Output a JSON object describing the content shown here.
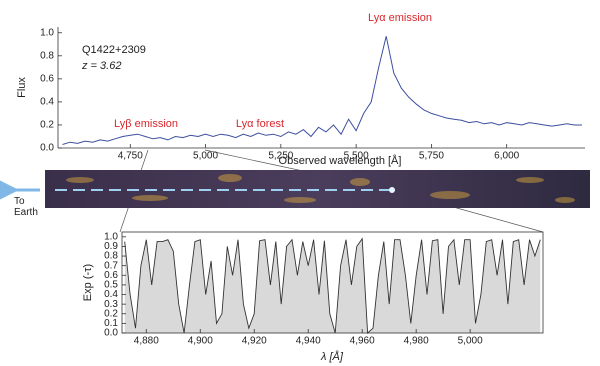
{
  "chart_data": [
    {
      "type": "line",
      "color": "#3b4f9e",
      "ylabel": "Flux",
      "xlabel": "Observed wavelength [Å]",
      "annotations": [
        "Q1422+2309",
        "z = 3.62",
        "Lyα emission",
        "Lyβ emission",
        "Lyα forest"
      ],
      "x": [
        4525,
        4550,
        4575,
        4600,
        4625,
        4650,
        4675,
        4700,
        4725,
        4750,
        4775,
        4800,
        4825,
        4850,
        4875,
        4900,
        4925,
        4950,
        4975,
        5000,
        5025,
        5050,
        5075,
        5100,
        5125,
        5150,
        5175,
        5200,
        5225,
        5250,
        5275,
        5300,
        5325,
        5350,
        5375,
        5400,
        5425,
        5450,
        5475,
        5500,
        5525,
        5550,
        5575,
        5600,
        5625,
        5650,
        5675,
        5700,
        5725,
        5750,
        5775,
        5800,
        5825,
        5850,
        5875,
        5900,
        5925,
        5950,
        5975,
        6000,
        6025,
        6050,
        6075,
        6100,
        6125,
        6150,
        6175,
        6200,
        6225,
        6250
      ],
      "values": [
        0.03,
        0.05,
        0.04,
        0.06,
        0.05,
        0.07,
        0.06,
        0.08,
        0.1,
        0.11,
        0.12,
        0.1,
        0.08,
        0.09,
        0.07,
        0.1,
        0.09,
        0.11,
        0.1,
        0.12,
        0.1,
        0.12,
        0.11,
        0.09,
        0.12,
        0.1,
        0.13,
        0.11,
        0.12,
        0.1,
        0.14,
        0.12,
        0.16,
        0.1,
        0.18,
        0.14,
        0.2,
        0.12,
        0.25,
        0.15,
        0.3,
        0.4,
        0.7,
        0.97,
        0.65,
        0.52,
        0.44,
        0.38,
        0.33,
        0.3,
        0.28,
        0.26,
        0.25,
        0.24,
        0.22,
        0.23,
        0.21,
        0.22,
        0.2,
        0.22,
        0.21,
        0.2,
        0.22,
        0.21,
        0.2,
        0.19,
        0.2,
        0.21,
        0.2,
        0.2
      ],
      "xlim": [
        4510,
        6260
      ],
      "ylim": [
        0,
        1.05
      ],
      "xticks": [
        {
          "value": 4750,
          "label": "4,750"
        },
        {
          "value": 5000,
          "label": "5,000"
        },
        {
          "value": 5250,
          "label": "5,250"
        },
        {
          "value": 5500,
          "label": "5,500"
        },
        {
          "value": 5750,
          "label": "5,750"
        },
        {
          "value": 6000,
          "label": "6,000"
        }
      ],
      "yticks": [
        {
          "value": 0,
          "label": "0.0"
        },
        0.2,
        0.4,
        0.6,
        0.8,
        {
          "value": 1,
          "label": "1.0"
        }
      ]
    },
    {
      "type": "area",
      "color": "#333333",
      "fill": "#d9d9d9",
      "ylabel": "Exp (-τ)",
      "xlabel": "λ [Å]",
      "x": [
        4872,
        4874,
        4876,
        4878,
        4880,
        4882,
        4884,
        4886,
        4888,
        4890,
        4892,
        4894,
        4896,
        4898,
        4900,
        4902,
        4904,
        4906,
        4908,
        4910,
        4912,
        4914,
        4916,
        4918,
        4920,
        4922,
        4924,
        4926,
        4928,
        4930,
        4932,
        4934,
        4936,
        4938,
        4940,
        4942,
        4944,
        4946,
        4948,
        4950,
        4952,
        4954,
        4956,
        4958,
        4960,
        4962,
        4964,
        4966,
        4968,
        4970,
        4972,
        4974,
        4976,
        4978,
        4980,
        4982,
        4984,
        4986,
        4988,
        4990,
        4992,
        4994,
        4996,
        4998,
        5000,
        5002,
        5004,
        5006,
        5008,
        5010,
        5012,
        5014,
        5016,
        5018,
        5020,
        5022,
        5024,
        5026
      ],
      "values": [
        0.95,
        0.4,
        0.05,
        0.7,
        0.97,
        0.5,
        0.95,
        0.95,
        0.97,
        0.85,
        0.3,
        0.0,
        0.5,
        0.95,
        0.97,
        0.4,
        0.75,
        0.1,
        0.2,
        0.9,
        0.6,
        0.97,
        0.3,
        0.05,
        0.2,
        0.96,
        0.97,
        0.5,
        0.95,
        0.3,
        0.9,
        0.97,
        0.6,
        0.95,
        0.7,
        0.97,
        0.4,
        0.96,
        0.2,
        0.0,
        0.7,
        0.97,
        0.5,
        0.9,
        0.98,
        0.0,
        0.05,
        0.6,
        0.95,
        0.3,
        0.97,
        0.97,
        0.6,
        0.1,
        0.6,
        0.97,
        0.4,
        0.96,
        0.97,
        0.2,
        0.9,
        0.97,
        0.5,
        0.97,
        0.97,
        0.1,
        0.4,
        0.95,
        0.97,
        0.6,
        0.97,
        0.3,
        0.95,
        0.97,
        0.5,
        0.97,
        0.8,
        0.97
      ],
      "xlim": [
        4871,
        5027
      ],
      "ylim": [
        0,
        1.05
      ],
      "xticks": [
        {
          "value": 4880,
          "label": "4,880"
        },
        {
          "value": 4900,
          "label": "4,900"
        },
        {
          "value": 4920,
          "label": "4,920"
        },
        {
          "value": 4940,
          "label": "4,940"
        },
        {
          "value": 4960,
          "label": "4,960"
        },
        {
          "value": 4980,
          "label": "4,980"
        },
        {
          "value": 5000,
          "label": "5,000"
        }
      ],
      "yticks": [
        {
          "value": 0,
          "label": "0.0"
        },
        0.1,
        0.2,
        0.3,
        0.4,
        0.5,
        0.6,
        0.7,
        0.8,
        0.9,
        {
          "value": 1,
          "label": "1.0"
        }
      ]
    }
  ],
  "image_label": "To Earth"
}
